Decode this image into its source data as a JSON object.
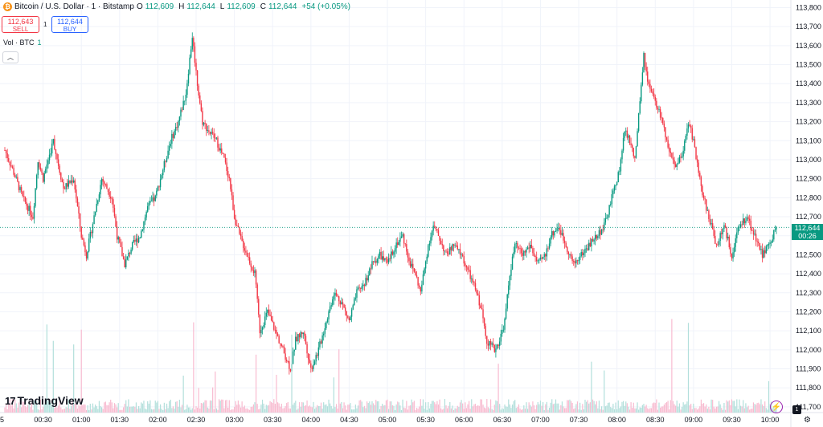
{
  "legend": {
    "symbol": "Bitcoin / U.S. Dollar · 1 · Bitstamp",
    "o_label": "O",
    "o": "112,609",
    "h_label": "H",
    "h": "112,644",
    "l_label": "L",
    "l": "112,609",
    "c_label": "C",
    "c": "112,644",
    "change": "+54 (+0.05%)"
  },
  "trade": {
    "sell_price": "112,643",
    "sell_label": "SELL",
    "spread": "1",
    "buy_price": "112,644",
    "buy_label": "BUY"
  },
  "volume": {
    "label": "Vol · BTC",
    "value": "1"
  },
  "price_tag": {
    "price": "112,644",
    "countdown": "00:26"
  },
  "branding": {
    "name": "TradingView",
    "mark": "17"
  },
  "corner_badge": "1",
  "colors": {
    "up": "#089981",
    "down": "#f23645",
    "grid": "#f0f3fa",
    "volume_up": "#b2dfdb",
    "volume_down": "#f8bbd0"
  },
  "chart_data": {
    "type": "candlestick",
    "symbol": "BTCUSD",
    "interval": "1 minute",
    "y_ticks": [
      111700,
      111800,
      111900,
      112000,
      112100,
      112200,
      112300,
      112400,
      112500,
      112600,
      112700,
      112800,
      112900,
      113000,
      113100,
      113200,
      113300,
      113400,
      113500,
      113600,
      113700,
      113800
    ],
    "y_tick_labels": [
      "111,700",
      "111,800",
      "111,900",
      "112,000",
      "112,100",
      "112,200",
      "112,300",
      "112,400",
      "112,500",
      "112,600",
      "112,700",
      "112,800",
      "112,900",
      "113,000",
      "113,100",
      "113,200",
      "113,300",
      "113,400",
      "113,500",
      "113,600",
      "113,700",
      "113,800"
    ],
    "ylim": [
      111670,
      113840
    ],
    "x_ticks": [
      "00:30",
      "01:00",
      "01:30",
      "02:00",
      "02:30",
      "03:00",
      "03:30",
      "04:00",
      "04:30",
      "05:00",
      "05:30",
      "06:00",
      "06:30",
      "07:00",
      "07:30",
      "08:00",
      "08:30",
      "09:00",
      "09:30",
      "10:00"
    ],
    "x_start_label": "5",
    "time_range_minutes": [
      0,
      605
    ],
    "last_price": 112644,
    "price_path": [
      {
        "t": 0,
        "p": 113050
      },
      {
        "t": 6,
        "p": 112950
      },
      {
        "t": 14,
        "p": 112800
      },
      {
        "t": 22,
        "p": 112700
      },
      {
        "t": 26,
        "p": 113000
      },
      {
        "t": 30,
        "p": 112900
      },
      {
        "t": 38,
        "p": 113100
      },
      {
        "t": 46,
        "p": 112850
      },
      {
        "t": 54,
        "p": 112900
      },
      {
        "t": 60,
        "p": 112600
      },
      {
        "t": 64,
        "p": 112500
      },
      {
        "t": 70,
        "p": 112700
      },
      {
        "t": 76,
        "p": 112900
      },
      {
        "t": 84,
        "p": 112800
      },
      {
        "t": 88,
        "p": 112600
      },
      {
        "t": 94,
        "p": 112450
      },
      {
        "t": 100,
        "p": 112550
      },
      {
        "t": 106,
        "p": 112600
      },
      {
        "t": 112,
        "p": 112750
      },
      {
        "t": 118,
        "p": 112800
      },
      {
        "t": 124,
        "p": 112950
      },
      {
        "t": 130,
        "p": 113100
      },
      {
        "t": 136,
        "p": 113200
      },
      {
        "t": 142,
        "p": 113350
      },
      {
        "t": 147,
        "p": 113650
      },
      {
        "t": 151,
        "p": 113400
      },
      {
        "t": 155,
        "p": 113200
      },
      {
        "t": 160,
        "p": 113150
      },
      {
        "t": 166,
        "p": 113100
      },
      {
        "t": 172,
        "p": 113000
      },
      {
        "t": 176,
        "p": 112900
      },
      {
        "t": 180,
        "p": 112700
      },
      {
        "t": 184,
        "p": 112600
      },
      {
        "t": 190,
        "p": 112500
      },
      {
        "t": 196,
        "p": 112400
      },
      {
        "t": 200,
        "p": 112100
      },
      {
        "t": 206,
        "p": 112200
      },
      {
        "t": 212,
        "p": 112100
      },
      {
        "t": 218,
        "p": 112000
      },
      {
        "t": 224,
        "p": 111900
      },
      {
        "t": 228,
        "p": 112050
      },
      {
        "t": 234,
        "p": 112100
      },
      {
        "t": 240,
        "p": 111900
      },
      {
        "t": 246,
        "p": 112000
      },
      {
        "t": 252,
        "p": 112150
      },
      {
        "t": 258,
        "p": 112300
      },
      {
        "t": 264,
        "p": 112250
      },
      {
        "t": 270,
        "p": 112150
      },
      {
        "t": 276,
        "p": 112300
      },
      {
        "t": 282,
        "p": 112350
      },
      {
        "t": 288,
        "p": 112450
      },
      {
        "t": 294,
        "p": 112500
      },
      {
        "t": 300,
        "p": 112450
      },
      {
        "t": 306,
        "p": 112550
      },
      {
        "t": 312,
        "p": 112600
      },
      {
        "t": 318,
        "p": 112450
      },
      {
        "t": 322,
        "p": 112400
      },
      {
        "t": 326,
        "p": 112300
      },
      {
        "t": 332,
        "p": 112550
      },
      {
        "t": 336,
        "p": 112650
      },
      {
        "t": 340,
        "p": 112600
      },
      {
        "t": 346,
        "p": 112500
      },
      {
        "t": 352,
        "p": 112550
      },
      {
        "t": 358,
        "p": 112500
      },
      {
        "t": 364,
        "p": 112400
      },
      {
        "t": 370,
        "p": 112300
      },
      {
        "t": 374,
        "p": 112200
      },
      {
        "t": 378,
        "p": 112050
      },
      {
        "t": 384,
        "p": 112000
      },
      {
        "t": 388,
        "p": 112050
      },
      {
        "t": 392,
        "p": 112150
      },
      {
        "t": 396,
        "p": 112400
      },
      {
        "t": 400,
        "p": 112550
      },
      {
        "t": 406,
        "p": 112500
      },
      {
        "t": 412,
        "p": 112550
      },
      {
        "t": 418,
        "p": 112450
      },
      {
        "t": 424,
        "p": 112500
      },
      {
        "t": 428,
        "p": 112600
      },
      {
        "t": 434,
        "p": 112650
      },
      {
        "t": 440,
        "p": 112550
      },
      {
        "t": 446,
        "p": 112450
      },
      {
        "t": 452,
        "p": 112500
      },
      {
        "t": 458,
        "p": 112550
      },
      {
        "t": 464,
        "p": 112600
      },
      {
        "t": 470,
        "p": 112650
      },
      {
        "t": 476,
        "p": 112800
      },
      {
        "t": 482,
        "p": 112950
      },
      {
        "t": 486,
        "p": 113150
      },
      {
        "t": 490,
        "p": 113100
      },
      {
        "t": 494,
        "p": 113000
      },
      {
        "t": 498,
        "p": 113300
      },
      {
        "t": 501,
        "p": 113550
      },
      {
        "t": 504,
        "p": 113400
      },
      {
        "t": 510,
        "p": 113300
      },
      {
        "t": 516,
        "p": 113200
      },
      {
        "t": 520,
        "p": 113050
      },
      {
        "t": 526,
        "p": 112950
      },
      {
        "t": 532,
        "p": 113050
      },
      {
        "t": 536,
        "p": 113200
      },
      {
        "t": 540,
        "p": 113100
      },
      {
        "t": 546,
        "p": 112850
      },
      {
        "t": 552,
        "p": 112700
      },
      {
        "t": 558,
        "p": 112550
      },
      {
        "t": 564,
        "p": 112650
      },
      {
        "t": 570,
        "p": 112500
      },
      {
        "t": 576,
        "p": 112650
      },
      {
        "t": 582,
        "p": 112700
      },
      {
        "t": 588,
        "p": 112600
      },
      {
        "t": 594,
        "p": 112500
      },
      {
        "t": 600,
        "p": 112560
      },
      {
        "t": 605,
        "p": 112644
      }
    ]
  }
}
